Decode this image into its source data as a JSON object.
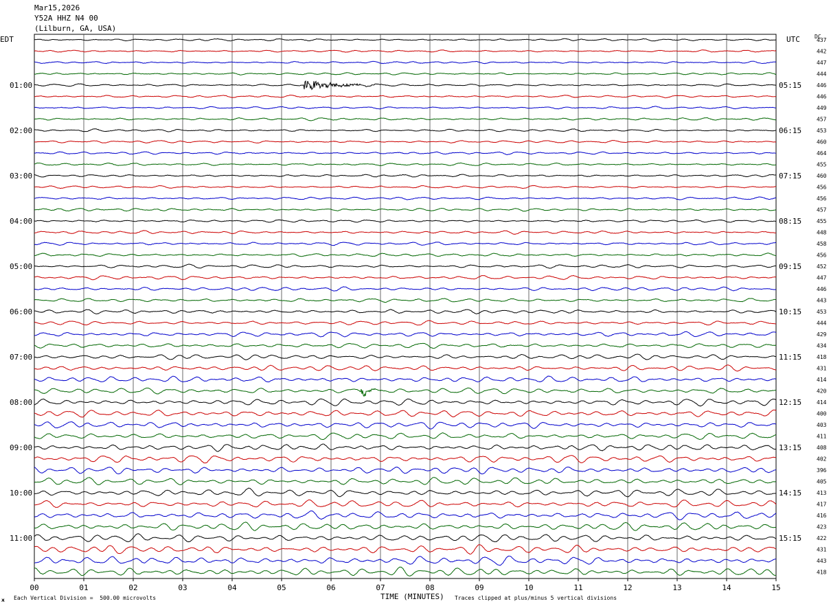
{
  "header": {
    "date": "Mar15,2026",
    "station": "Y52A HHZ N4 00",
    "location": "(Lilburn, GA, USA)"
  },
  "left_tz": "EDT",
  "right_tz": "UTC",
  "dc_label": "DC",
  "left_hour_labels": [
    "01:00",
    "02:00",
    "03:00",
    "04:00",
    "05:00",
    "06:00",
    "07:00",
    "08:00",
    "09:00",
    "10:00",
    "11:00"
  ],
  "right_hour_labels": [
    "05:15",
    "06:15",
    "07:15",
    "08:15",
    "09:15",
    "10:15",
    "11:15",
    "12:15",
    "13:15",
    "14:15",
    "15:15"
  ],
  "footer": {
    "scale_note": "Each Vertical Division =  500.00 microvolts",
    "xlabel": "TIME (MINUTES)",
    "clip_note": "Traces clipped at plus/minus 5 vertical divisions"
  },
  "colors": {
    "trace_cycle": [
      "#000000",
      "#cc0000",
      "#0000cc",
      "#006600"
    ],
    "grid": "#000000",
    "background": "#ffffff"
  },
  "chart_data": {
    "type": "line",
    "subtype": "helicorder",
    "x_unit": "minutes",
    "xlim": [
      0,
      15
    ],
    "x_ticks": [
      "00",
      "01",
      "02",
      "03",
      "04",
      "05",
      "06",
      "07",
      "08",
      "09",
      "10",
      "11",
      "12",
      "13",
      "14",
      "15"
    ],
    "grid": true,
    "trace_count": 48,
    "traces_per_hour": 4,
    "dc_offsets": [
      437,
      442,
      447,
      444,
      446,
      446,
      449,
      457,
      453,
      460,
      464,
      455,
      460,
      456,
      456,
      457,
      455,
      448,
      458,
      456,
      452,
      447,
      446,
      443,
      453,
      444,
      429,
      434,
      418,
      431,
      414,
      420,
      414,
      400,
      403,
      411,
      408,
      402,
      396,
      405,
      413,
      417,
      416,
      423,
      422,
      431,
      443,
      418
    ],
    "relative_amplitude": [
      1.0,
      1.0,
      1.0,
      1.0,
      1.1,
      1.1,
      1.1,
      1.2,
      1.2,
      1.2,
      1.2,
      1.2,
      1.2,
      1.2,
      1.3,
      1.3,
      1.3,
      1.4,
      1.4,
      1.5,
      1.6,
      1.7,
      1.8,
      1.8,
      1.9,
      2.0,
      2.1,
      2.3,
      2.4,
      2.6,
      2.8,
      3.0,
      3.1,
      3.4,
      3.2,
      3.1,
      3.0,
      3.2,
      3.3,
      3.4,
      3.4,
      3.5,
      3.5,
      3.6,
      3.7,
      3.8,
      3.9,
      4.0
    ],
    "events": [
      {
        "trace": 4,
        "start_min": 5.45,
        "end_min": 7.2,
        "peak_amplitude": 5.5
      },
      {
        "trace": 31,
        "start_min": 6.6,
        "end_min": 7.1,
        "peak_amplitude": 4.0
      }
    ]
  }
}
